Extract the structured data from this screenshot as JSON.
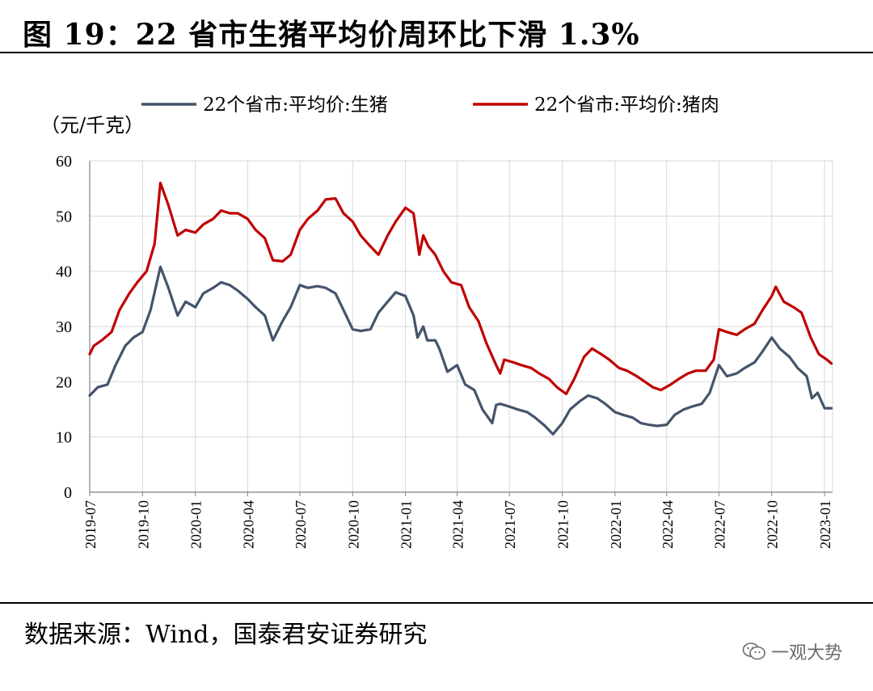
{
  "figure": {
    "title": "图 19：22 省市生猪平均价周环比下滑 1.3%",
    "source": "数据来源：Wind，国泰君安证券研究",
    "watermark": "一观大势",
    "watermark_icon": "wechat-icon"
  },
  "chart_data": {
    "type": "line",
    "unit_label": "（元/千克）",
    "ylim": [
      0,
      60
    ],
    "yticks": [
      0,
      10,
      20,
      30,
      40,
      50,
      60
    ],
    "xlim": [
      "2019-07-01",
      "2023-01-15"
    ],
    "xticks": [
      "2019-07",
      "2019-10",
      "2020-01",
      "2020-04",
      "2020-07",
      "2020-10",
      "2021-01",
      "2021-04",
      "2021-07",
      "2021-10",
      "2022-01",
      "2022-04",
      "2022-07",
      "2022-10",
      "2023-01"
    ],
    "grid": true,
    "legend_position": "top",
    "series": [
      {
        "name": "22个省市:平均价:生猪",
        "color": "#44546a",
        "points": [
          [
            "2019-07-01",
            17.5
          ],
          [
            "2019-07-15",
            19.0
          ],
          [
            "2019-08-01",
            19.5
          ],
          [
            "2019-08-15",
            23.0
          ],
          [
            "2019-09-01",
            26.5
          ],
          [
            "2019-09-15",
            28.0
          ],
          [
            "2019-10-01",
            29.0
          ],
          [
            "2019-10-15",
            33.0
          ],
          [
            "2019-11-01",
            40.8
          ],
          [
            "2019-11-15",
            37.0
          ],
          [
            "2019-12-01",
            32.0
          ],
          [
            "2019-12-15",
            34.5
          ],
          [
            "2020-01-01",
            33.5
          ],
          [
            "2020-01-15",
            36.0
          ],
          [
            "2020-02-01",
            37.0
          ],
          [
            "2020-02-15",
            38.0
          ],
          [
            "2020-03-01",
            37.5
          ],
          [
            "2020-03-15",
            36.5
          ],
          [
            "2020-04-01",
            35.0
          ],
          [
            "2020-04-15",
            33.5
          ],
          [
            "2020-05-01",
            32.0
          ],
          [
            "2020-05-15",
            27.5
          ],
          [
            "2020-06-01",
            31.0
          ],
          [
            "2020-06-15",
            33.5
          ],
          [
            "2020-07-01",
            37.5
          ],
          [
            "2020-07-15",
            37.0
          ],
          [
            "2020-08-01",
            37.3
          ],
          [
            "2020-08-15",
            37.0
          ],
          [
            "2020-09-01",
            36.0
          ],
          [
            "2020-09-15",
            33.0
          ],
          [
            "2020-10-01",
            29.5
          ],
          [
            "2020-10-15",
            29.2
          ],
          [
            "2020-11-01",
            29.5
          ],
          [
            "2020-11-15",
            32.5
          ],
          [
            "2020-12-01",
            34.5
          ],
          [
            "2020-12-15",
            36.2
          ],
          [
            "2021-01-01",
            35.5
          ],
          [
            "2021-01-15",
            32.0
          ],
          [
            "2021-01-22",
            28.0
          ],
          [
            "2021-02-01",
            30.0
          ],
          [
            "2021-02-08",
            27.5
          ],
          [
            "2021-02-22",
            27.5
          ],
          [
            "2021-03-01",
            26.0
          ],
          [
            "2021-03-15",
            21.8
          ],
          [
            "2021-04-01",
            23.0
          ],
          [
            "2021-04-15",
            19.5
          ],
          [
            "2021-05-01",
            18.5
          ],
          [
            "2021-05-15",
            15.0
          ],
          [
            "2021-06-01",
            12.5
          ],
          [
            "2021-06-08",
            15.8
          ],
          [
            "2021-06-15",
            16.0
          ],
          [
            "2021-07-01",
            15.5
          ],
          [
            "2021-07-15",
            15.0
          ],
          [
            "2021-08-01",
            14.5
          ],
          [
            "2021-08-15",
            13.5
          ],
          [
            "2021-09-01",
            12.0
          ],
          [
            "2021-09-15",
            10.5
          ],
          [
            "2021-10-01",
            12.5
          ],
          [
            "2021-10-15",
            15.0
          ],
          [
            "2021-11-01",
            16.5
          ],
          [
            "2021-11-15",
            17.5
          ],
          [
            "2021-12-01",
            17.0
          ],
          [
            "2021-12-15",
            16.0
          ],
          [
            "2022-01-01",
            14.5
          ],
          [
            "2022-01-15",
            14.0
          ],
          [
            "2022-02-01",
            13.5
          ],
          [
            "2022-02-15",
            12.5
          ],
          [
            "2022-03-01",
            12.2
          ],
          [
            "2022-03-15",
            12.0
          ],
          [
            "2022-04-01",
            12.2
          ],
          [
            "2022-04-15",
            14.0
          ],
          [
            "2022-05-01",
            15.0
          ],
          [
            "2022-05-15",
            15.5
          ],
          [
            "2022-06-01",
            16.0
          ],
          [
            "2022-06-15",
            18.0
          ],
          [
            "2022-07-01",
            23.0
          ],
          [
            "2022-07-15",
            21.0
          ],
          [
            "2022-08-01",
            21.5
          ],
          [
            "2022-08-15",
            22.5
          ],
          [
            "2022-09-01",
            23.5
          ],
          [
            "2022-09-15",
            25.5
          ],
          [
            "2022-10-01",
            28.0
          ],
          [
            "2022-10-15",
            26.0
          ],
          [
            "2022-11-01",
            24.5
          ],
          [
            "2022-11-15",
            22.5
          ],
          [
            "2022-12-01",
            21.0
          ],
          [
            "2022-12-10",
            17.0
          ],
          [
            "2022-12-20",
            18.0
          ],
          [
            "2023-01-01",
            15.2
          ],
          [
            "2023-01-13",
            15.2
          ]
        ]
      },
      {
        "name": "22个省市:平均价:猪肉",
        "color": "#c00000",
        "points": [
          [
            "2019-07-01",
            25.0
          ],
          [
            "2019-07-08",
            26.5
          ],
          [
            "2019-07-22",
            27.5
          ],
          [
            "2019-08-08",
            29.0
          ],
          [
            "2019-08-22",
            33.0
          ],
          [
            "2019-09-08",
            36.0
          ],
          [
            "2019-09-22",
            38.0
          ],
          [
            "2019-10-08",
            40.0
          ],
          [
            "2019-10-22",
            45.0
          ],
          [
            "2019-11-01",
            56.0
          ],
          [
            "2019-11-15",
            52.0
          ],
          [
            "2019-12-01",
            46.5
          ],
          [
            "2019-12-15",
            47.5
          ],
          [
            "2020-01-01",
            47.0
          ],
          [
            "2020-01-15",
            48.5
          ],
          [
            "2020-02-01",
            49.5
          ],
          [
            "2020-02-15",
            51.0
          ],
          [
            "2020-03-01",
            50.5
          ],
          [
            "2020-03-15",
            50.5
          ],
          [
            "2020-04-01",
            49.5
          ],
          [
            "2020-04-15",
            47.5
          ],
          [
            "2020-05-01",
            46.0
          ],
          [
            "2020-05-15",
            42.0
          ],
          [
            "2020-06-01",
            41.8
          ],
          [
            "2020-06-15",
            43.0
          ],
          [
            "2020-07-01",
            47.5
          ],
          [
            "2020-07-15",
            49.5
          ],
          [
            "2020-08-01",
            51.0
          ],
          [
            "2020-08-15",
            53.0
          ],
          [
            "2020-09-01",
            53.2
          ],
          [
            "2020-09-15",
            50.5
          ],
          [
            "2020-10-01",
            49.0
          ],
          [
            "2020-10-15",
            46.5
          ],
          [
            "2020-11-01",
            44.5
          ],
          [
            "2020-11-15",
            43.0
          ],
          [
            "2020-12-01",
            46.5
          ],
          [
            "2020-12-15",
            49.0
          ],
          [
            "2021-01-01",
            51.5
          ],
          [
            "2021-01-15",
            50.5
          ],
          [
            "2021-01-25",
            43.0
          ],
          [
            "2021-02-01",
            46.5
          ],
          [
            "2021-02-10",
            44.5
          ],
          [
            "2021-02-22",
            43.0
          ],
          [
            "2021-03-08",
            40.0
          ],
          [
            "2021-03-22",
            38.0
          ],
          [
            "2021-04-08",
            37.5
          ],
          [
            "2021-04-22",
            33.5
          ],
          [
            "2021-05-08",
            31.0
          ],
          [
            "2021-05-22",
            27.0
          ],
          [
            "2021-06-08",
            23.0
          ],
          [
            "2021-06-15",
            21.5
          ],
          [
            "2021-06-22",
            24.0
          ],
          [
            "2021-07-08",
            23.5
          ],
          [
            "2021-07-22",
            23.0
          ],
          [
            "2021-08-08",
            22.5
          ],
          [
            "2021-08-22",
            21.5
          ],
          [
            "2021-09-08",
            20.5
          ],
          [
            "2021-09-22",
            19.0
          ],
          [
            "2021-10-08",
            17.8
          ],
          [
            "2021-10-22",
            20.5
          ],
          [
            "2021-11-08",
            24.5
          ],
          [
            "2021-11-22",
            26.0
          ],
          [
            "2021-12-08",
            25.0
          ],
          [
            "2021-12-22",
            24.0
          ],
          [
            "2022-01-08",
            22.5
          ],
          [
            "2022-01-22",
            22.0
          ],
          [
            "2022-02-08",
            21.0
          ],
          [
            "2022-02-22",
            20.0
          ],
          [
            "2022-03-08",
            19.0
          ],
          [
            "2022-03-22",
            18.5
          ],
          [
            "2022-04-08",
            19.5
          ],
          [
            "2022-04-22",
            20.5
          ],
          [
            "2022-05-08",
            21.5
          ],
          [
            "2022-05-22",
            22.0
          ],
          [
            "2022-06-08",
            22.0
          ],
          [
            "2022-06-22",
            24.0
          ],
          [
            "2022-07-01",
            29.5
          ],
          [
            "2022-07-15",
            29.0
          ],
          [
            "2022-08-01",
            28.5
          ],
          [
            "2022-08-15",
            29.5
          ],
          [
            "2022-09-01",
            30.5
          ],
          [
            "2022-09-15",
            33.0
          ],
          [
            "2022-10-01",
            35.5
          ],
          [
            "2022-10-08",
            37.2
          ],
          [
            "2022-10-22",
            34.5
          ],
          [
            "2022-11-08",
            33.5
          ],
          [
            "2022-11-22",
            32.5
          ],
          [
            "2022-12-08",
            28.0
          ],
          [
            "2022-12-22",
            25.0
          ],
          [
            "2023-01-05",
            24.0
          ],
          [
            "2023-01-13",
            23.3
          ]
        ]
      }
    ]
  }
}
